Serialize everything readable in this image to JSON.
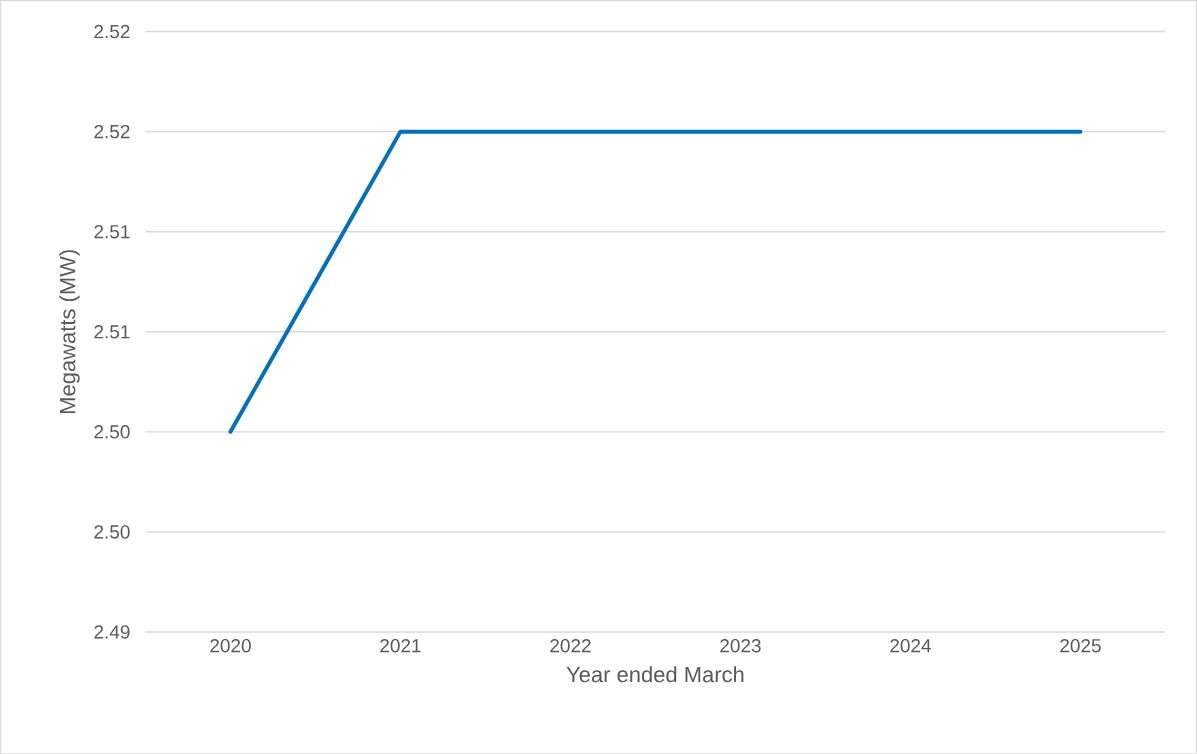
{
  "chart_data": {
    "type": "line",
    "xlabel": "Year ended March",
    "ylabel": "Megawatts (MW)",
    "categories": [
      "2020",
      "2021",
      "2022",
      "2023",
      "2024",
      "2025"
    ],
    "series": [
      {
        "color": "#0070c0",
        "values": [
          2.505,
          2.52,
          2.52,
          2.52,
          2.52,
          2.52
        ]
      }
    ],
    "ylim": [
      2.495,
      2.525
    ],
    "yticks": [
      {
        "value": 2.495,
        "label": "2.49"
      },
      {
        "value": 2.5,
        "label": "2.50"
      },
      {
        "value": 2.505,
        "label": "2.50"
      },
      {
        "value": 2.51,
        "label": "2.51"
      },
      {
        "value": 2.515,
        "label": "2.51"
      },
      {
        "value": 2.52,
        "label": "2.52"
      },
      {
        "value": 2.525,
        "label": "2.52"
      }
    ],
    "grid": "y",
    "legend": false,
    "marker": "none",
    "line_style": "solid"
  }
}
